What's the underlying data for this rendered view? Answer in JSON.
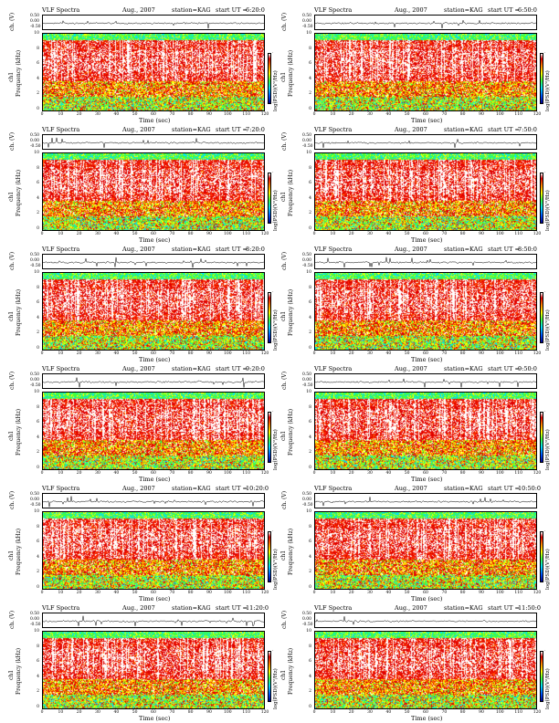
{
  "header": {
    "title": "VLF Spectra",
    "date": "Aug., 2007",
    "station": "station=KAG",
    "start_prefix": "start UT ="
  },
  "axes": {
    "wave_ylabel": "ch. (V)",
    "spec_ylabel_left": "ch1",
    "spec_ylabel": "Frequency (kHz)",
    "xlabel": "Time (sec)",
    "cbar_label": "log(PSD)(V²/Hz)",
    "wave_ticks": [
      "0.50",
      "0.00",
      "-0.50"
    ],
    "freq_ticks": [
      "10",
      "8",
      "6",
      "4",
      "2",
      "0"
    ],
    "time_ticks": [
      "0",
      "10",
      "20",
      "30",
      "40",
      "50",
      "60",
      "70",
      "80",
      "90",
      "100",
      "110",
      "120"
    ]
  },
  "colormap": [
    "#00008f",
    "#0050ff",
    "#00e0ff",
    "#40ff40",
    "#ffff00",
    "#ff8000",
    "#e00000",
    "#ffffff"
  ],
  "chart_data": [
    {
      "type": "heatmap",
      "start_ut": "6:20:0",
      "xlim": [
        0,
        120
      ],
      "ylim": [
        0,
        10
      ]
    },
    {
      "type": "heatmap",
      "start_ut": "6:50:0",
      "xlim": [
        0,
        120
      ],
      "ylim": [
        0,
        10
      ]
    },
    {
      "type": "heatmap",
      "start_ut": "7:20:0",
      "xlim": [
        0,
        120
      ],
      "ylim": [
        0,
        10
      ]
    },
    {
      "type": "heatmap",
      "start_ut": "7:50:0",
      "xlim": [
        0,
        120
      ],
      "ylim": [
        0,
        10
      ]
    },
    {
      "type": "heatmap",
      "start_ut": "8:20:0",
      "xlim": [
        0,
        120
      ],
      "ylim": [
        0,
        10
      ]
    },
    {
      "type": "heatmap",
      "start_ut": "8:50:0",
      "xlim": [
        0,
        120
      ],
      "ylim": [
        0,
        10
      ]
    },
    {
      "type": "heatmap",
      "start_ut": "9:20:0",
      "xlim": [
        0,
        120
      ],
      "ylim": [
        0,
        10
      ]
    },
    {
      "type": "heatmap",
      "start_ut": "9:50:0",
      "xlim": [
        0,
        120
      ],
      "ylim": [
        0,
        10
      ]
    },
    {
      "type": "heatmap",
      "start_ut": "10:20:0",
      "xlim": [
        0,
        120
      ],
      "ylim": [
        0,
        10
      ]
    },
    {
      "type": "heatmap",
      "start_ut": "10:50:0",
      "xlim": [
        0,
        120
      ],
      "ylim": [
        0,
        10
      ]
    },
    {
      "type": "heatmap",
      "start_ut": "11:20:0",
      "xlim": [
        0,
        120
      ],
      "ylim": [
        0,
        10
      ]
    },
    {
      "type": "heatmap",
      "start_ut": "11:50:0",
      "xlim": [
        0,
        120
      ],
      "ylim": [
        0,
        10
      ]
    }
  ]
}
